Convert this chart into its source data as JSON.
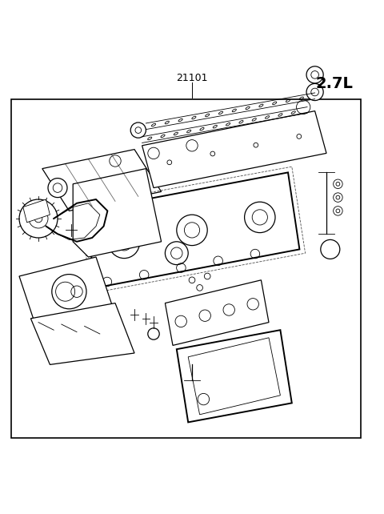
{
  "title_text": "2.7L",
  "part_number": "21101",
  "bg_color": "#ffffff",
  "border_color": "#000000",
  "line_color": "#000000",
  "title_fontsize": 14,
  "part_number_fontsize": 9,
  "fig_width": 4.8,
  "fig_height": 6.42,
  "dpi": 100
}
